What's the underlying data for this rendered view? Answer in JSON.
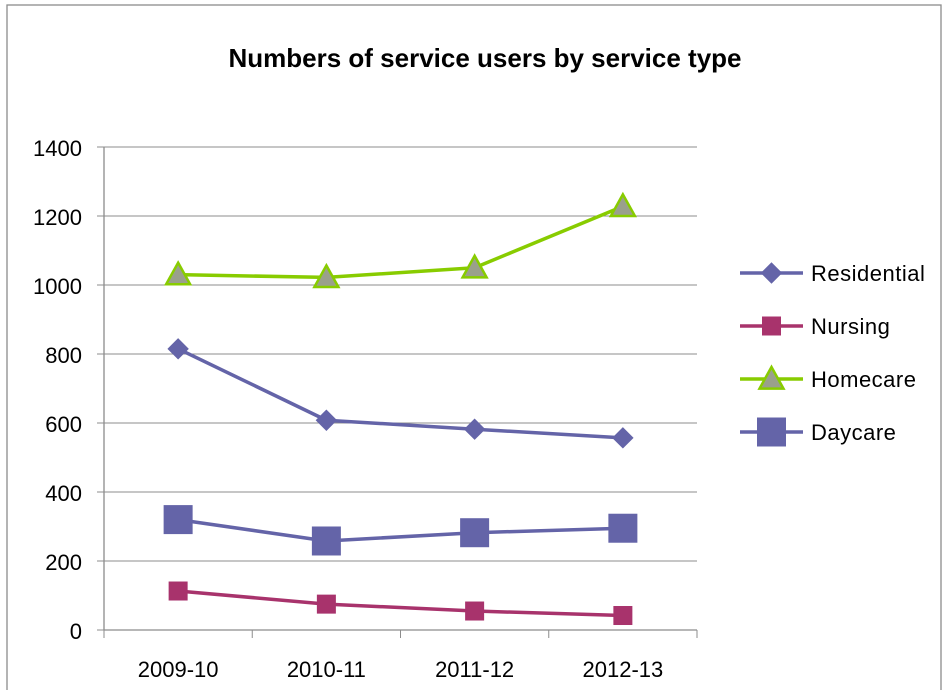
{
  "chart_data": {
    "type": "line",
    "title": "Numbers of service users by service type",
    "xlabel": "",
    "ylabel": "",
    "categories": [
      "2009-10",
      "2010-11",
      "2011-12",
      "2012-13"
    ],
    "ylim": [
      0,
      1400
    ],
    "yticks": [
      0,
      200,
      400,
      600,
      800,
      1000,
      1200,
      1400
    ],
    "grid": true,
    "legend_position": "right",
    "series": [
      {
        "name": "Residential",
        "values": [
          815,
          608,
          582,
          557
        ],
        "color": "#6464a8",
        "marker": "diamond"
      },
      {
        "name": "Nursing",
        "values": [
          113,
          75,
          55,
          42
        ],
        "color": "#a8336c",
        "marker": "square"
      },
      {
        "name": "Homecare",
        "values": [
          1030,
          1022,
          1050,
          1228
        ],
        "color": "#88cc00",
        "marker": "triangle"
      },
      {
        "name": "Daycare",
        "values": [
          320,
          258,
          282,
          295
        ],
        "color": "#6464a8",
        "marker": "bigsquare"
      }
    ]
  }
}
